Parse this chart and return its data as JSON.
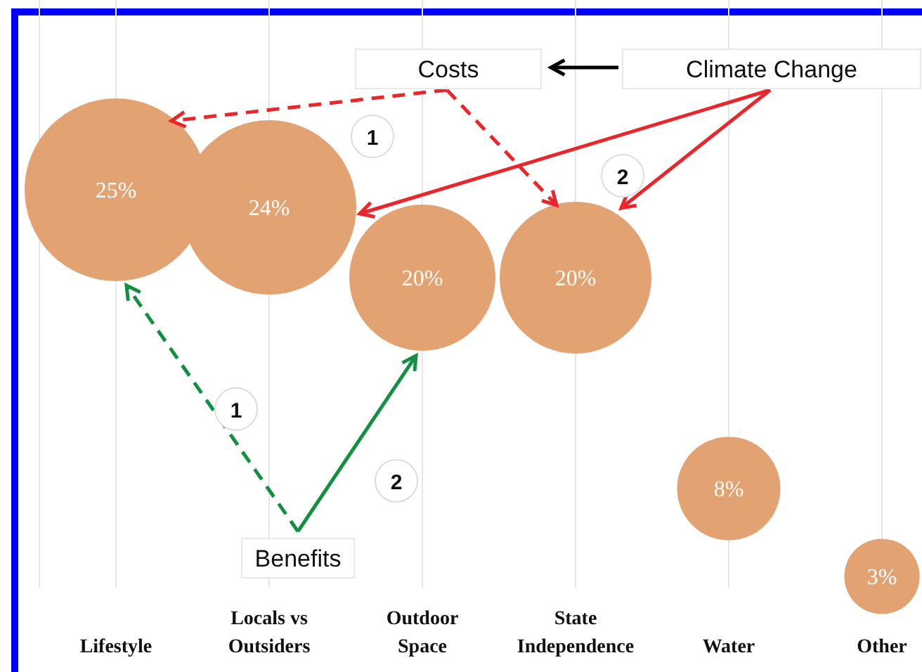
{
  "chart_data": {
    "type": "bubble",
    "categories": [
      "Lifestyle",
      "Locals vs Outsiders",
      "Outdoor Space",
      "State Independence",
      "Water",
      "Other"
    ],
    "values": [
      25,
      24,
      20,
      20,
      8,
      3
    ],
    "sizes": [
      1,
      0.91,
      0.64,
      0.69,
      0.32,
      0.17
    ],
    "value_labels": [
      "25%",
      "24%",
      "20%",
      "20%",
      "8%",
      "3%"
    ],
    "color": "#e3a272",
    "grid": "x",
    "annotations": [
      "Costs",
      "Climate Change",
      "Benefits",
      "1",
      "2",
      "1",
      "2"
    ]
  }
}
